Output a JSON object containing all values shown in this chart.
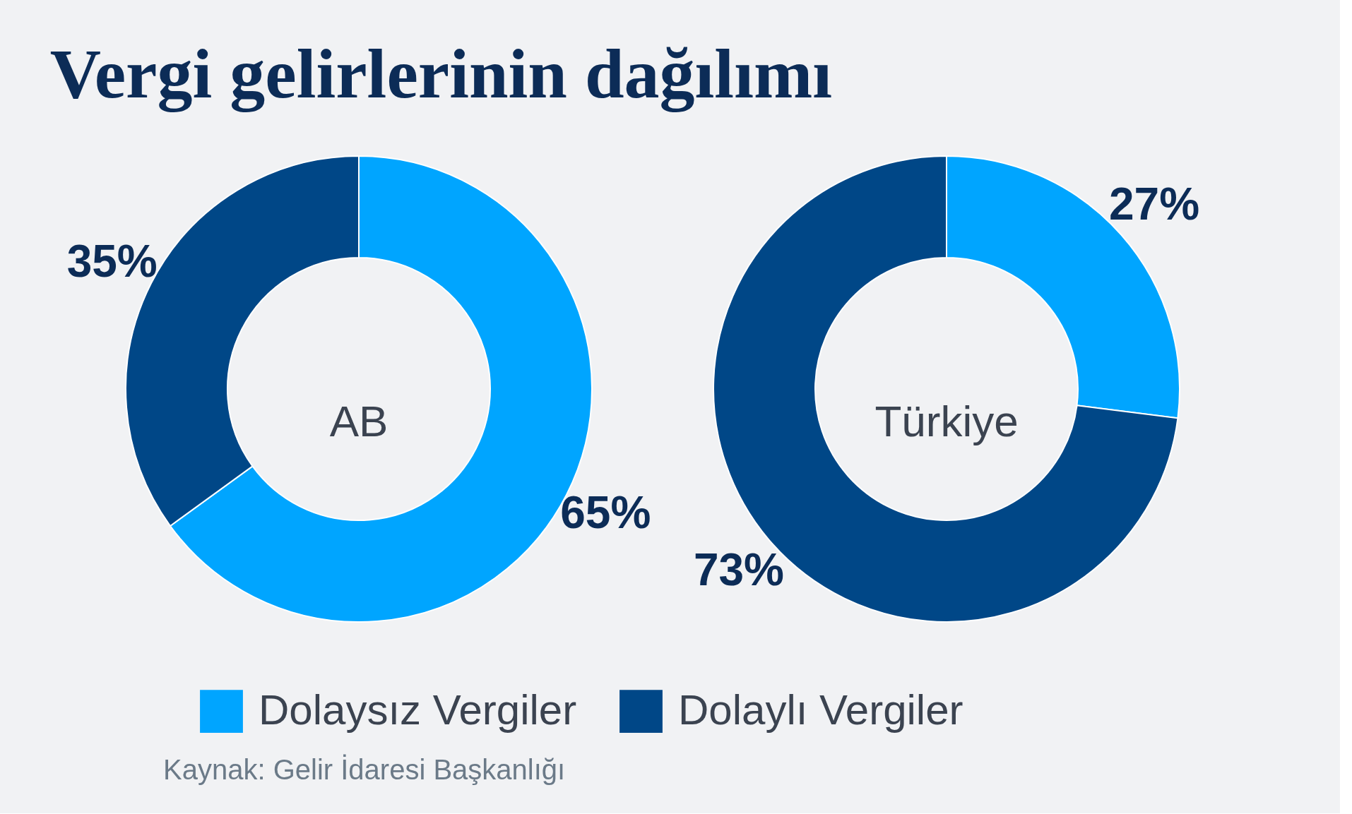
{
  "chart_data": {
    "type": "donut",
    "title": "Vergi gelirlerinin dağılımı",
    "categories": [
      "Dolaysız Vergiler",
      "Dolaylı Vergiler"
    ],
    "colors": [
      "#00a5ff",
      "#004787"
    ],
    "series": [
      {
        "name": "AB",
        "values": [
          65,
          35
        ],
        "value_labels": [
          "65%",
          "35%"
        ]
      },
      {
        "name": "Türkiye",
        "values": [
          27,
          73
        ],
        "value_labels": [
          "27%",
          "73%"
        ]
      }
    ],
    "legend": "bottom",
    "annotations": [
      "Kaynak: Gelir İdaresi Başkanlığı"
    ]
  }
}
